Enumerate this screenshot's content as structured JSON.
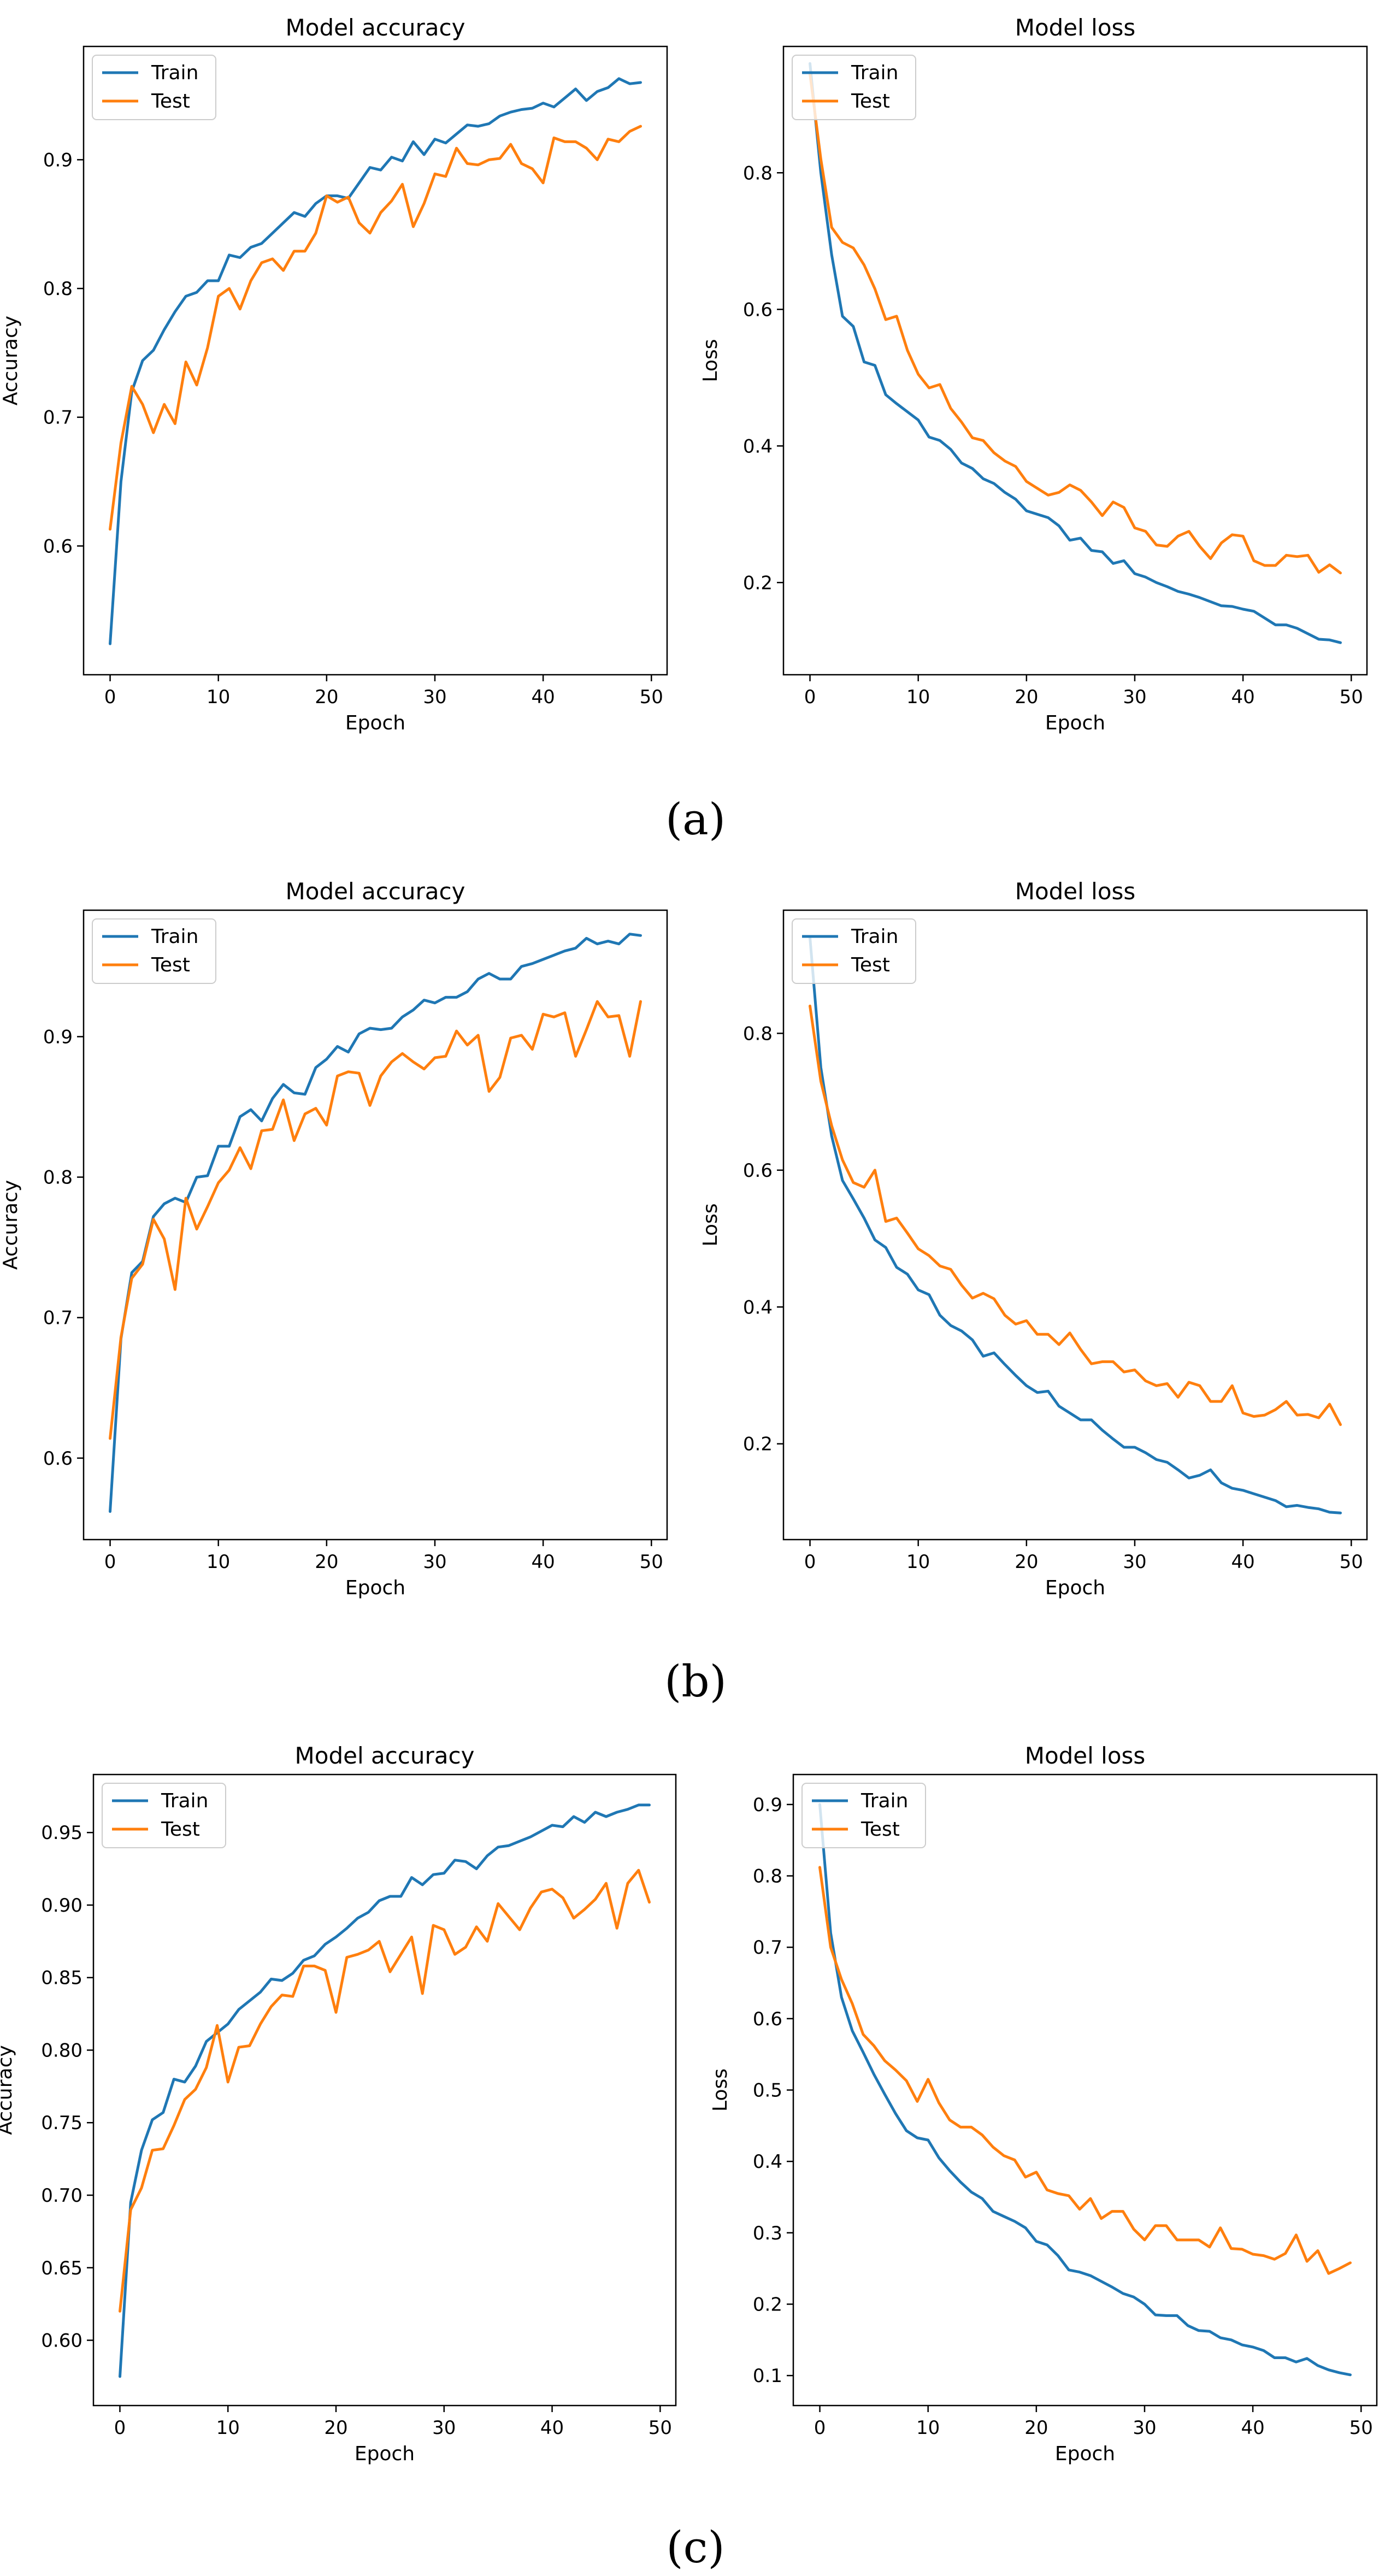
{
  "colors": {
    "train": "#1f77b4",
    "test": "#ff7f0e",
    "axis": "#000000"
  },
  "captions": [
    "(a)",
    "(b)",
    "(c)"
  ],
  "chart_data": [
    {
      "type": "line",
      "group": "a",
      "title": "Model accuracy",
      "xlabel": "Epoch",
      "ylabel": "Accuracy",
      "xlim": [
        -2.45,
        51.45
      ],
      "ylim": [
        0.5,
        0.988
      ],
      "xticks": [
        0,
        10,
        20,
        30,
        40,
        50
      ],
      "xtick_labels": [
        "0",
        "10",
        "20",
        "30",
        "40",
        "50"
      ],
      "yticks": [
        0.6,
        0.7,
        0.8,
        0.9
      ],
      "ytick_labels": [
        "0.6",
        "0.7",
        "0.8",
        "0.9"
      ],
      "legend": "upper-left",
      "series": [
        {
          "name": "Train",
          "values": [
            0.524,
            0.65,
            0.72,
            0.744,
            0.752,
            0.768,
            0.782,
            0.794,
            0.797,
            0.806,
            0.806,
            0.826,
            0.824,
            0.832,
            0.835,
            0.843,
            0.851,
            0.859,
            0.856,
            0.866,
            0.872,
            0.872,
            0.87,
            0.882,
            0.894,
            0.892,
            0.902,
            0.899,
            0.914,
            0.904,
            0.916,
            0.913,
            0.92,
            0.927,
            0.926,
            0.928,
            0.934,
            0.937,
            0.939,
            0.94,
            0.944,
            0.941,
            0.948,
            0.955,
            0.946,
            0.953,
            0.956,
            0.963,
            0.959,
            0.96
          ]
        },
        {
          "name": "Test",
          "values": [
            0.613,
            0.68,
            0.724,
            0.71,
            0.688,
            0.71,
            0.695,
            0.743,
            0.725,
            0.754,
            0.794,
            0.8,
            0.784,
            0.806,
            0.82,
            0.823,
            0.814,
            0.829,
            0.829,
            0.843,
            0.872,
            0.867,
            0.871,
            0.851,
            0.843,
            0.859,
            0.868,
            0.881,
            0.848,
            0.866,
            0.889,
            0.887,
            0.909,
            0.897,
            0.896,
            0.9,
            0.901,
            0.912,
            0.897,
            0.893,
            0.882,
            0.917,
            0.914,
            0.914,
            0.909,
            0.9,
            0.916,
            0.914,
            0.922,
            0.926
          ]
        }
      ]
    },
    {
      "type": "line",
      "group": "a",
      "title": "Model loss",
      "xlabel": "Epoch",
      "ylabel": "Loss",
      "xlim": [
        -2.45,
        51.45
      ],
      "ylim": [
        0.065,
        0.985
      ],
      "xticks": [
        0,
        10,
        20,
        30,
        40,
        50
      ],
      "xtick_labels": [
        "0",
        "10",
        "20",
        "30",
        "40",
        "50"
      ],
      "yticks": [
        0.2,
        0.4,
        0.6,
        0.8
      ],
      "ytick_labels": [
        "0.2",
        "0.4",
        "0.6",
        "0.8"
      ],
      "legend": "upper-left",
      "series": [
        {
          "name": "Train",
          "values": [
            0.96,
            0.8,
            0.68,
            0.59,
            0.575,
            0.523,
            0.518,
            0.475,
            0.462,
            0.45,
            0.438,
            0.413,
            0.408,
            0.395,
            0.375,
            0.367,
            0.352,
            0.345,
            0.332,
            0.322,
            0.305,
            0.3,
            0.295,
            0.283,
            0.262,
            0.265,
            0.247,
            0.245,
            0.228,
            0.232,
            0.213,
            0.208,
            0.2,
            0.194,
            0.187,
            0.183,
            0.178,
            0.172,
            0.166,
            0.165,
            0.161,
            0.158,
            0.148,
            0.138,
            0.138,
            0.133,
            0.125,
            0.117,
            0.116,
            0.112
          ]
        },
        {
          "name": "Test",
          "values": [
            0.945,
            0.82,
            0.72,
            0.698,
            0.69,
            0.665,
            0.63,
            0.585,
            0.59,
            0.54,
            0.505,
            0.485,
            0.49,
            0.455,
            0.435,
            0.412,
            0.408,
            0.39,
            0.378,
            0.37,
            0.348,
            0.338,
            0.328,
            0.332,
            0.343,
            0.335,
            0.318,
            0.298,
            0.318,
            0.31,
            0.28,
            0.275,
            0.255,
            0.253,
            0.268,
            0.275,
            0.253,
            0.235,
            0.258,
            0.27,
            0.268,
            0.232,
            0.225,
            0.225,
            0.24,
            0.238,
            0.24,
            0.215,
            0.226,
            0.214
          ]
        }
      ]
    },
    {
      "type": "line",
      "group": "b",
      "title": "Model accuracy",
      "xlabel": "Epoch",
      "ylabel": "Accuracy",
      "xlim": [
        -2.45,
        51.45
      ],
      "ylim": [
        0.542,
        0.99
      ],
      "xticks": [
        0,
        10,
        20,
        30,
        40,
        50
      ],
      "xtick_labels": [
        "0",
        "10",
        "20",
        "30",
        "40",
        "50"
      ],
      "yticks": [
        0.6,
        0.7,
        0.8,
        0.9
      ],
      "ytick_labels": [
        "0.6",
        "0.7",
        "0.8",
        "0.9"
      ],
      "legend": "upper-left",
      "series": [
        {
          "name": "Train",
          "values": [
            0.562,
            0.685,
            0.732,
            0.74,
            0.772,
            0.781,
            0.785,
            0.782,
            0.8,
            0.801,
            0.822,
            0.822,
            0.843,
            0.848,
            0.84,
            0.856,
            0.866,
            0.86,
            0.859,
            0.878,
            0.884,
            0.893,
            0.889,
            0.902,
            0.906,
            0.905,
            0.906,
            0.914,
            0.919,
            0.926,
            0.924,
            0.928,
            0.928,
            0.932,
            0.941,
            0.945,
            0.941,
            0.941,
            0.95,
            0.952,
            0.955,
            0.958,
            0.961,
            0.963,
            0.97,
            0.966,
            0.968,
            0.966,
            0.973,
            0.972
          ]
        },
        {
          "name": "Test",
          "values": [
            0.614,
            0.686,
            0.728,
            0.738,
            0.77,
            0.756,
            0.72,
            0.785,
            0.763,
            0.779,
            0.796,
            0.805,
            0.821,
            0.806,
            0.833,
            0.834,
            0.855,
            0.826,
            0.845,
            0.849,
            0.837,
            0.872,
            0.875,
            0.874,
            0.851,
            0.872,
            0.882,
            0.888,
            0.882,
            0.877,
            0.885,
            0.886,
            0.904,
            0.894,
            0.901,
            0.861,
            0.871,
            0.899,
            0.901,
            0.891,
            0.916,
            0.914,
            0.917,
            0.886,
            0.905,
            0.925,
            0.914,
            0.915,
            0.886,
            0.925
          ]
        }
      ]
    },
    {
      "type": "line",
      "group": "b",
      "title": "Model loss",
      "xlabel": "Epoch",
      "ylabel": "Loss",
      "xlim": [
        -2.45,
        51.45
      ],
      "ylim": [
        0.06,
        0.98
      ],
      "xticks": [
        0,
        10,
        20,
        30,
        40,
        50
      ],
      "xtick_labels": [
        "0",
        "10",
        "20",
        "30",
        "40",
        "50"
      ],
      "yticks": [
        0.2,
        0.4,
        0.6,
        0.8
      ],
      "ytick_labels": [
        "0.2",
        "0.4",
        "0.6",
        "0.8"
      ],
      "legend": "upper-left",
      "series": [
        {
          "name": "Train",
          "values": [
            0.94,
            0.75,
            0.65,
            0.585,
            0.558,
            0.53,
            0.498,
            0.487,
            0.458,
            0.448,
            0.425,
            0.418,
            0.388,
            0.373,
            0.365,
            0.352,
            0.328,
            0.333,
            0.316,
            0.3,
            0.285,
            0.275,
            0.277,
            0.255,
            0.245,
            0.235,
            0.235,
            0.22,
            0.207,
            0.195,
            0.195,
            0.187,
            0.177,
            0.173,
            0.162,
            0.15,
            0.154,
            0.162,
            0.143,
            0.135,
            0.132,
            0.127,
            0.122,
            0.117,
            0.108,
            0.11,
            0.107,
            0.105,
            0.1,
            0.099
          ]
        },
        {
          "name": "Test",
          "values": [
            0.84,
            0.73,
            0.665,
            0.615,
            0.582,
            0.575,
            0.6,
            0.525,
            0.53,
            0.508,
            0.485,
            0.475,
            0.46,
            0.455,
            0.432,
            0.413,
            0.42,
            0.412,
            0.388,
            0.375,
            0.38,
            0.36,
            0.36,
            0.345,
            0.362,
            0.338,
            0.317,
            0.32,
            0.32,
            0.305,
            0.308,
            0.292,
            0.285,
            0.288,
            0.268,
            0.29,
            0.285,
            0.262,
            0.262,
            0.285,
            0.245,
            0.24,
            0.242,
            0.25,
            0.262,
            0.242,
            0.243,
            0.238,
            0.258,
            0.228
          ]
        }
      ]
    },
    {
      "type": "line",
      "group": "c",
      "title": "Model accuracy",
      "xlabel": "Epoch",
      "ylabel": "Accuracy",
      "xlim": [
        -2.45,
        51.45
      ],
      "ylim": [
        0.555,
        0.99
      ],
      "xticks": [
        0,
        10,
        20,
        30,
        40,
        50
      ],
      "xtick_labels": [
        "0",
        "10",
        "20",
        "30",
        "40",
        "50"
      ],
      "yticks": [
        0.6,
        0.65,
        0.7,
        0.75,
        0.8,
        0.85,
        0.9,
        0.95
      ],
      "ytick_labels": [
        "0.60",
        "0.65",
        "0.70",
        "0.75",
        "0.80",
        "0.85",
        "0.90",
        "0.95"
      ],
      "legend": "upper-left",
      "series": [
        {
          "name": "Train",
          "values": [
            0.575,
            0.695,
            0.731,
            0.752,
            0.757,
            0.78,
            0.778,
            0.789,
            0.806,
            0.812,
            0.818,
            0.828,
            0.834,
            0.84,
            0.849,
            0.848,
            0.853,
            0.862,
            0.865,
            0.873,
            0.878,
            0.884,
            0.891,
            0.895,
            0.903,
            0.906,
            0.906,
            0.919,
            0.914,
            0.921,
            0.922,
            0.931,
            0.93,
            0.925,
            0.934,
            0.94,
            0.941,
            0.944,
            0.947,
            0.951,
            0.955,
            0.954,
            0.961,
            0.957,
            0.964,
            0.961,
            0.964,
            0.966,
            0.969,
            0.969
          ]
        },
        {
          "name": "Test",
          "values": [
            0.62,
            0.69,
            0.705,
            0.731,
            0.732,
            0.748,
            0.766,
            0.773,
            0.788,
            0.817,
            0.778,
            0.802,
            0.803,
            0.818,
            0.83,
            0.838,
            0.837,
            0.858,
            0.858,
            0.855,
            0.826,
            0.864,
            0.866,
            0.869,
            0.875,
            0.854,
            0.866,
            0.878,
            0.839,
            0.886,
            0.883,
            0.866,
            0.871,
            0.885,
            0.875,
            0.901,
            0.892,
            0.883,
            0.898,
            0.909,
            0.911,
            0.905,
            0.891,
            0.897,
            0.904,
            0.915,
            0.884,
            0.915,
            0.924,
            0.902
          ]
        }
      ]
    },
    {
      "type": "line",
      "group": "c",
      "title": "Model loss",
      "xlabel": "Epoch",
      "ylabel": "Loss",
      "xlim": [
        -2.45,
        51.45
      ],
      "ylim": [
        0.058,
        0.942
      ],
      "xticks": [
        0,
        10,
        20,
        30,
        40,
        50
      ],
      "xtick_labels": [
        "0",
        "10",
        "20",
        "30",
        "40",
        "50"
      ],
      "yticks": [
        0.1,
        0.2,
        0.3,
        0.4,
        0.5,
        0.6,
        0.7,
        0.8,
        0.9
      ],
      "ytick_labels": [
        "0.1",
        "0.2",
        "0.3",
        "0.4",
        "0.5",
        "0.6",
        "0.7",
        "0.8",
        "0.9"
      ],
      "legend": "upper-left",
      "series": [
        {
          "name": "Train",
          "values": [
            0.9,
            0.72,
            0.63,
            0.583,
            0.553,
            0.522,
            0.494,
            0.467,
            0.443,
            0.433,
            0.43,
            0.405,
            0.387,
            0.371,
            0.357,
            0.348,
            0.33,
            0.323,
            0.316,
            0.307,
            0.288,
            0.283,
            0.268,
            0.248,
            0.245,
            0.24,
            0.232,
            0.224,
            0.215,
            0.21,
            0.2,
            0.185,
            0.184,
            0.184,
            0.17,
            0.163,
            0.162,
            0.153,
            0.15,
            0.143,
            0.14,
            0.135,
            0.125,
            0.125,
            0.119,
            0.124,
            0.114,
            0.108,
            0.104,
            0.101
          ]
        },
        {
          "name": "Test",
          "values": [
            0.812,
            0.7,
            0.655,
            0.621,
            0.578,
            0.562,
            0.541,
            0.528,
            0.513,
            0.484,
            0.515,
            0.482,
            0.458,
            0.448,
            0.448,
            0.437,
            0.42,
            0.408,
            0.402,
            0.378,
            0.385,
            0.36,
            0.355,
            0.352,
            0.333,
            0.348,
            0.32,
            0.33,
            0.33,
            0.305,
            0.29,
            0.31,
            0.31,
            0.29,
            0.29,
            0.29,
            0.28,
            0.307,
            0.278,
            0.277,
            0.27,
            0.268,
            0.263,
            0.271,
            0.297,
            0.26,
            0.275,
            0.243,
            0.25,
            0.258
          ]
        }
      ]
    }
  ]
}
